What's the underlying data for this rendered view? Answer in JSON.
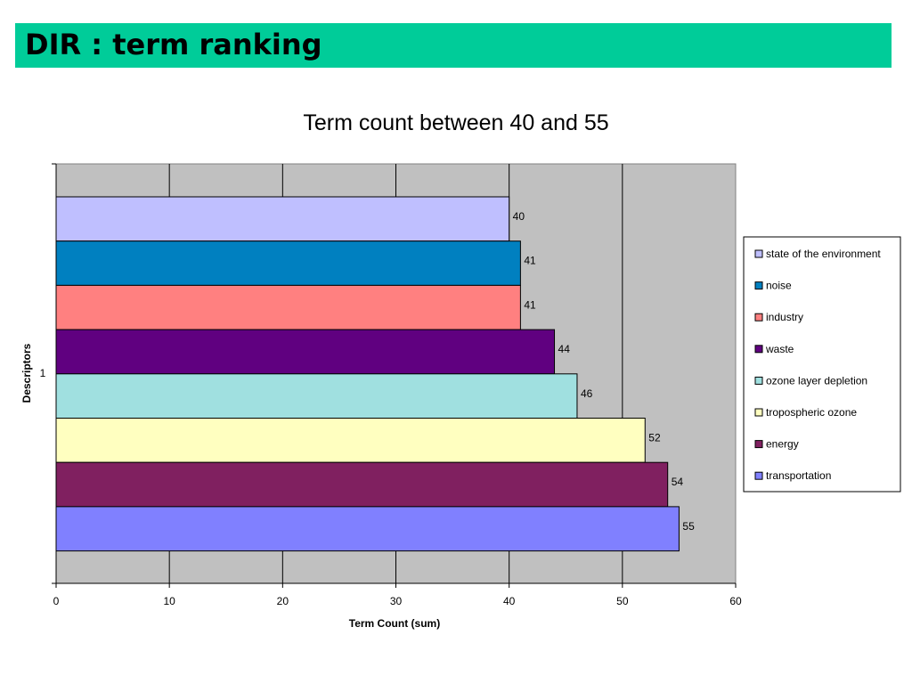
{
  "header": {
    "title": "DIR : term ranking",
    "background_color": "#00CC99"
  },
  "chart_data": {
    "type": "bar",
    "orientation": "horizontal",
    "title": "Term count between 40 and 55",
    "xlabel": "Term Count (sum)",
    "ylabel": "Descriptors",
    "categories": [
      "1"
    ],
    "xlim": [
      0,
      60
    ],
    "x_ticks": [
      0,
      10,
      20,
      30,
      40,
      50,
      60
    ],
    "grid": true,
    "plot_background": "#C0C0C0",
    "legend_position": "right",
    "series": [
      {
        "name": "state of the environment",
        "values": [
          40
        ],
        "color": "#BFBFFF"
      },
      {
        "name": "noise",
        "values": [
          41
        ],
        "color": "#0080C0"
      },
      {
        "name": "industry",
        "values": [
          41
        ],
        "color": "#FF8080"
      },
      {
        "name": "waste",
        "values": [
          44
        ],
        "color": "#600080"
      },
      {
        "name": "ozone layer depletion",
        "values": [
          46
        ],
        "color": "#A0E0E0"
      },
      {
        "name": "tropospheric ozone",
        "values": [
          52
        ],
        "color": "#FFFFC0"
      },
      {
        "name": "energy",
        "values": [
          54
        ],
        "color": "#802060"
      },
      {
        "name": "transportation",
        "values": [
          55
        ],
        "color": "#8080FF"
      }
    ]
  }
}
